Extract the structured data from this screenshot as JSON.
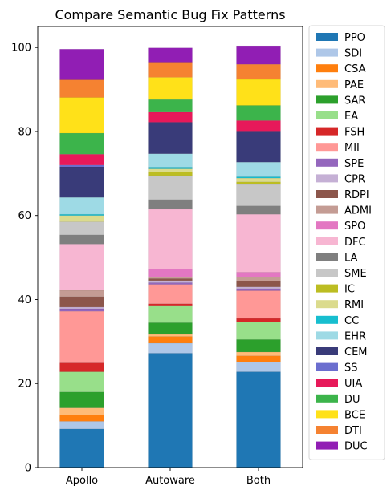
{
  "chart_data": {
    "type": "bar",
    "stacked": true,
    "title": "Compare Semantic Bug Fix Patterns",
    "xlabel": "",
    "ylabel": "",
    "ylim": [
      0,
      105
    ],
    "yticks": [
      0,
      20,
      40,
      60,
      80,
      100
    ],
    "grid": false,
    "legend_position": "outside-right",
    "categories": [
      "Apollo",
      "Autoware",
      "Both"
    ],
    "series": [
      {
        "name": "PPO",
        "color": "#1f77b4",
        "values": [
          9.2,
          27.2,
          22.8
        ]
      },
      {
        "name": "SDI",
        "color": "#aec7e8",
        "values": [
          1.8,
          2.4,
          2.3
        ]
      },
      {
        "name": "CSA",
        "color": "#ff7f0e",
        "values": [
          1.5,
          1.6,
          1.5
        ]
      },
      {
        "name": "PAE",
        "color": "#ffbb78",
        "values": [
          1.7,
          0.5,
          0.9
        ]
      },
      {
        "name": "SAR",
        "color": "#2ca02c",
        "values": [
          3.8,
          2.8,
          3.0
        ]
      },
      {
        "name": "EA",
        "color": "#98df8a",
        "values": [
          4.8,
          4.1,
          4.1
        ]
      },
      {
        "name": "FSH",
        "color": "#d62728",
        "values": [
          2.1,
          0.4,
          0.9
        ]
      },
      {
        "name": "MII",
        "color": "#ff9896",
        "values": [
          12.3,
          4.6,
          6.6
        ]
      },
      {
        "name": "SPE",
        "color": "#9467bd",
        "values": [
          0.6,
          0.4,
          0.5
        ]
      },
      {
        "name": "CPR",
        "color": "#c5b0d5",
        "values": [
          0.4,
          0.5,
          0.4
        ]
      },
      {
        "name": "RDPI",
        "color": "#8c564b",
        "values": [
          2.5,
          0.5,
          1.4
        ]
      },
      {
        "name": "ADMI",
        "color": "#c49c94",
        "values": [
          1.5,
          0.4,
          0.9
        ]
      },
      {
        "name": "SPO",
        "color": "#e377c2",
        "values": [
          0.0,
          1.8,
          1.2
        ]
      },
      {
        "name": "DFC",
        "color": "#f7b6d2",
        "values": [
          11.0,
          14.3,
          13.8
        ]
      },
      {
        "name": "LA",
        "color": "#7f7f7f",
        "values": [
          2.2,
          2.3,
          2.0
        ]
      },
      {
        "name": "SME",
        "color": "#c7c7c7",
        "values": [
          3.1,
          5.7,
          5.1
        ]
      },
      {
        "name": "IC",
        "color": "#bcbd22",
        "values": [
          0.0,
          0.9,
          0.6
        ]
      },
      {
        "name": "RMI",
        "color": "#dbdb8d",
        "values": [
          1.5,
          0.7,
          0.9
        ]
      },
      {
        "name": "CC",
        "color": "#17becf",
        "values": [
          0.3,
          0.4,
          0.3
        ]
      },
      {
        "name": "EHR",
        "color": "#9edae5",
        "values": [
          4.0,
          3.2,
          3.5
        ]
      },
      {
        "name": "CEM",
        "color": "#393b79",
        "values": [
          7.3,
          7.5,
          7.4
        ]
      },
      {
        "name": "SS",
        "color": "#6b6ecf",
        "values": [
          0.4,
          0.0,
          0.0
        ]
      },
      {
        "name": "UIA",
        "color": "#e7195a",
        "values": [
          2.6,
          2.4,
          2.5
        ]
      },
      {
        "name": "DU",
        "color": "#3cb44b",
        "values": [
          5.0,
          3.0,
          3.6
        ]
      },
      {
        "name": "BCE",
        "color": "#ffe119",
        "values": [
          8.5,
          5.3,
          6.2
        ]
      },
      {
        "name": "DTI",
        "color": "#f58231",
        "values": [
          4.2,
          3.6,
          3.6
        ]
      },
      {
        "name": "DUC",
        "color": "#911eb4",
        "values": [
          7.3,
          3.4,
          4.4
        ]
      }
    ]
  }
}
